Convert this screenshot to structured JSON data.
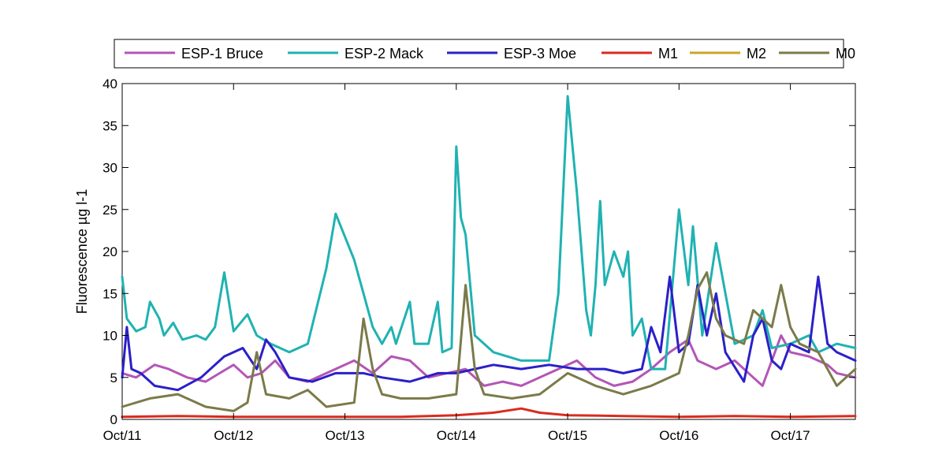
{
  "chart_data": {
    "type": "line",
    "title": "",
    "xlabel": "",
    "ylabel": "Fluorescence µg l-1",
    "xlim": [
      "2024-10-11",
      "2024-10-17 14:00"
    ],
    "ylim": [
      0,
      40
    ],
    "x_ticks": [
      "Oct/11",
      "Oct/12",
      "Oct/13",
      "Oct/14",
      "Oct/15",
      "Oct/16",
      "Oct/17"
    ],
    "y_ticks": [
      0,
      5,
      10,
      15,
      20,
      25,
      30,
      35,
      40
    ],
    "grid": false,
    "legend_position": "top",
    "series": [
      {
        "name": "ESP-1 Bruce",
        "color": "#b455b6",
        "points": [
          [
            "2024-10-11 00:00",
            5.5
          ],
          [
            "2024-10-11 03:00",
            5.0
          ],
          [
            "2024-10-11 07:00",
            6.5
          ],
          [
            "2024-10-11 10:00",
            6.0
          ],
          [
            "2024-10-11 14:00",
            5.0
          ],
          [
            "2024-10-11 18:00",
            4.5
          ],
          [
            "2024-10-11 21:00",
            5.5
          ],
          [
            "2024-10-12 00:00",
            6.5
          ],
          [
            "2024-10-12 03:00",
            5.0
          ],
          [
            "2024-10-12 06:00",
            5.5
          ],
          [
            "2024-10-12 09:00",
            7.0
          ],
          [
            "2024-10-12 12:00",
            5.0
          ],
          [
            "2024-10-12 16:00",
            4.5
          ],
          [
            "2024-10-12 20:00",
            5.5
          ],
          [
            "2024-10-13 00:00",
            6.5
          ],
          [
            "2024-10-13 02:00",
            7.0
          ],
          [
            "2024-10-13 06:00",
            5.5
          ],
          [
            "2024-10-13 10:00",
            7.5
          ],
          [
            "2024-10-13 14:00",
            7.0
          ],
          [
            "2024-10-13 18:00",
            5.0
          ],
          [
            "2024-10-13 22:00",
            5.5
          ],
          [
            "2024-10-14 02:00",
            6.0
          ],
          [
            "2024-10-14 06:00",
            4.0
          ],
          [
            "2024-10-14 10:00",
            4.5
          ],
          [
            "2024-10-14 14:00",
            4.0
          ],
          [
            "2024-10-14 18:00",
            5.0
          ],
          [
            "2024-10-14 22:00",
            6.0
          ],
          [
            "2024-10-15 02:00",
            7.0
          ],
          [
            "2024-10-15 06:00",
            5.0
          ],
          [
            "2024-10-15 10:00",
            4.0
          ],
          [
            "2024-10-15 14:00",
            4.5
          ],
          [
            "2024-10-15 18:00",
            6.0
          ],
          [
            "2024-10-15 22:00",
            8.0
          ],
          [
            "2024-10-16 02:00",
            9.5
          ],
          [
            "2024-10-16 04:00",
            7.0
          ],
          [
            "2024-10-16 08:00",
            6.0
          ],
          [
            "2024-10-16 12:00",
            7.0
          ],
          [
            "2024-10-16 16:00",
            5.0
          ],
          [
            "2024-10-16 18:00",
            4.0
          ],
          [
            "2024-10-16 20:00",
            7.0
          ],
          [
            "2024-10-16 22:00",
            10.0
          ],
          [
            "2024-10-17 00:00",
            8.0
          ],
          [
            "2024-10-17 04:00",
            7.5
          ],
          [
            "2024-10-17 08:00",
            6.5
          ],
          [
            "2024-10-17 10:00",
            5.5
          ],
          [
            "2024-10-17 14:00",
            5.0
          ]
        ]
      },
      {
        "name": "ESP-2 Mack",
        "color": "#20b2b2",
        "points": [
          [
            "2024-10-11 00:00",
            17.0
          ],
          [
            "2024-10-11 01:00",
            12.0
          ],
          [
            "2024-10-11 03:00",
            10.5
          ],
          [
            "2024-10-11 05:00",
            11.0
          ],
          [
            "2024-10-11 06:00",
            14.0
          ],
          [
            "2024-10-11 08:00",
            12.0
          ],
          [
            "2024-10-11 09:00",
            10.0
          ],
          [
            "2024-10-11 11:00",
            11.5
          ],
          [
            "2024-10-11 13:00",
            9.5
          ],
          [
            "2024-10-11 16:00",
            10.0
          ],
          [
            "2024-10-11 18:00",
            9.5
          ],
          [
            "2024-10-11 20:00",
            11.0
          ],
          [
            "2024-10-11 22:00",
            17.5
          ],
          [
            "2024-10-12 00:00",
            10.5
          ],
          [
            "2024-10-12 03:00",
            12.5
          ],
          [
            "2024-10-12 05:00",
            10.0
          ],
          [
            "2024-10-12 08:00",
            9.0
          ],
          [
            "2024-10-12 12:00",
            8.0
          ],
          [
            "2024-10-12 16:00",
            9.0
          ],
          [
            "2024-10-12 20:00",
            18.0
          ],
          [
            "2024-10-12 22:00",
            24.5
          ],
          [
            "2024-10-13 02:00",
            19.0
          ],
          [
            "2024-10-13 04:00",
            15.0
          ],
          [
            "2024-10-13 06:00",
            11.0
          ],
          [
            "2024-10-13 08:00",
            9.0
          ],
          [
            "2024-10-13 10:00",
            11.0
          ],
          [
            "2024-10-13 11:00",
            9.0
          ],
          [
            "2024-10-13 14:00",
            14.0
          ],
          [
            "2024-10-13 15:00",
            9.0
          ],
          [
            "2024-10-13 18:00",
            9.0
          ],
          [
            "2024-10-13 20:00",
            14.0
          ],
          [
            "2024-10-13 21:00",
            8.0
          ],
          [
            "2024-10-13 23:00",
            8.5
          ],
          [
            "2024-10-14 00:00",
            32.5
          ],
          [
            "2024-10-14 01:00",
            24.0
          ],
          [
            "2024-10-14 02:00",
            22.0
          ],
          [
            "2024-10-14 04:00",
            10.0
          ],
          [
            "2024-10-14 08:00",
            8.0
          ],
          [
            "2024-10-14 14:00",
            7.0
          ],
          [
            "2024-10-14 20:00",
            7.0
          ],
          [
            "2024-10-14 22:00",
            15.0
          ],
          [
            "2024-10-15 00:00",
            38.5
          ],
          [
            "2024-10-15 02:00",
            27.0
          ],
          [
            "2024-10-15 04:00",
            13.0
          ],
          [
            "2024-10-15 05:00",
            10.0
          ],
          [
            "2024-10-15 06:00",
            16.0
          ],
          [
            "2024-10-15 07:00",
            26.0
          ],
          [
            "2024-10-15 08:00",
            16.0
          ],
          [
            "2024-10-15 10:00",
            20.0
          ],
          [
            "2024-10-15 12:00",
            17.0
          ],
          [
            "2024-10-15 13:00",
            20.0
          ],
          [
            "2024-10-15 14:00",
            10.0
          ],
          [
            "2024-10-15 16:00",
            12.0
          ],
          [
            "2024-10-15 18:00",
            6.0
          ],
          [
            "2024-10-15 21:00",
            6.0
          ],
          [
            "2024-10-16 00:00",
            25.0
          ],
          [
            "2024-10-16 02:00",
            16.0
          ],
          [
            "2024-10-16 03:00",
            23.0
          ],
          [
            "2024-10-16 05:00",
            10.0
          ],
          [
            "2024-10-16 08:00",
            21.0
          ],
          [
            "2024-10-16 10:00",
            15.0
          ],
          [
            "2024-10-16 12:00",
            9.0
          ],
          [
            "2024-10-16 16:00",
            10.0
          ],
          [
            "2024-10-16 18:00",
            13.0
          ],
          [
            "2024-10-16 20:00",
            8.5
          ],
          [
            "2024-10-17 00:00",
            9.0
          ],
          [
            "2024-10-17 04:00",
            10.0
          ],
          [
            "2024-10-17 06:00",
            8.0
          ],
          [
            "2024-10-17 10:00",
            9.0
          ],
          [
            "2024-10-17 14:00",
            8.5
          ]
        ]
      },
      {
        "name": "ESP-3 Moe",
        "color": "#2b20c8",
        "points": [
          [
            "2024-10-11 00:00",
            5.0
          ],
          [
            "2024-10-11 01:00",
            11.0
          ],
          [
            "2024-10-11 02:00",
            6.0
          ],
          [
            "2024-10-11 04:00",
            5.5
          ],
          [
            "2024-10-11 07:00",
            4.0
          ],
          [
            "2024-10-11 12:00",
            3.5
          ],
          [
            "2024-10-11 17:00",
            5.0
          ],
          [
            "2024-10-11 22:00",
            7.5
          ],
          [
            "2024-10-12 02:00",
            8.5
          ],
          [
            "2024-10-12 05:00",
            6.0
          ],
          [
            "2024-10-12 07:00",
            9.5
          ],
          [
            "2024-10-12 09:00",
            8.0
          ],
          [
            "2024-10-12 12:00",
            5.0
          ],
          [
            "2024-10-12 17:00",
            4.5
          ],
          [
            "2024-10-12 22:00",
            5.5
          ],
          [
            "2024-10-13 04:00",
            5.5
          ],
          [
            "2024-10-13 08:00",
            5.0
          ],
          [
            "2024-10-13 14:00",
            4.5
          ],
          [
            "2024-10-13 20:00",
            5.5
          ],
          [
            "2024-10-14 00:00",
            5.5
          ],
          [
            "2024-10-14 04:00",
            6.0
          ],
          [
            "2024-10-14 08:00",
            6.5
          ],
          [
            "2024-10-14 14:00",
            6.0
          ],
          [
            "2024-10-14 20:00",
            6.5
          ],
          [
            "2024-10-15 02:00",
            6.0
          ],
          [
            "2024-10-15 08:00",
            6.0
          ],
          [
            "2024-10-15 12:00",
            5.5
          ],
          [
            "2024-10-15 16:00",
            6.0
          ],
          [
            "2024-10-15 18:00",
            11.0
          ],
          [
            "2024-10-15 20:00",
            8.0
          ],
          [
            "2024-10-15 22:00",
            17.0
          ],
          [
            "2024-10-16 00:00",
            8.0
          ],
          [
            "2024-10-16 02:00",
            9.0
          ],
          [
            "2024-10-16 04:00",
            16.0
          ],
          [
            "2024-10-16 06:00",
            10.0
          ],
          [
            "2024-10-16 08:00",
            15.0
          ],
          [
            "2024-10-16 10:00",
            8.0
          ],
          [
            "2024-10-16 14:00",
            4.5
          ],
          [
            "2024-10-16 16:00",
            10.0
          ],
          [
            "2024-10-16 18:00",
            12.0
          ],
          [
            "2024-10-16 20:00",
            7.0
          ],
          [
            "2024-10-16 22:00",
            6.0
          ],
          [
            "2024-10-17 00:00",
            9.0
          ],
          [
            "2024-10-17 04:00",
            8.0
          ],
          [
            "2024-10-17 06:00",
            17.0
          ],
          [
            "2024-10-17 08:00",
            9.0
          ],
          [
            "2024-10-17 10:00",
            8.0
          ],
          [
            "2024-10-17 14:00",
            7.0
          ]
        ]
      },
      {
        "name": "M1",
        "color": "#d92b1e",
        "points": [
          [
            "2024-10-11 00:00",
            0.3
          ],
          [
            "2024-10-11 12:00",
            0.4
          ],
          [
            "2024-10-12 00:00",
            0.3
          ],
          [
            "2024-10-12 12:00",
            0.3
          ],
          [
            "2024-10-13 00:00",
            0.3
          ],
          [
            "2024-10-13 12:00",
            0.3
          ],
          [
            "2024-10-14 00:00",
            0.5
          ],
          [
            "2024-10-14 08:00",
            0.8
          ],
          [
            "2024-10-14 14:00",
            1.3
          ],
          [
            "2024-10-14 18:00",
            0.8
          ],
          [
            "2024-10-15 00:00",
            0.5
          ],
          [
            "2024-10-15 12:00",
            0.4
          ],
          [
            "2024-10-16 00:00",
            0.3
          ],
          [
            "2024-10-16 12:00",
            0.4
          ],
          [
            "2024-10-17 00:00",
            0.3
          ],
          [
            "2024-10-17 14:00",
            0.4
          ]
        ]
      },
      {
        "name": "M2",
        "color": "#c9a629",
        "points": []
      },
      {
        "name": "M0",
        "color": "#7b7a4a",
        "points": [
          [
            "2024-10-11 00:00",
            1.5
          ],
          [
            "2024-10-11 06:00",
            2.5
          ],
          [
            "2024-10-11 12:00",
            3.0
          ],
          [
            "2024-10-11 18:00",
            1.5
          ],
          [
            "2024-10-12 00:00",
            1.0
          ],
          [
            "2024-10-12 03:00",
            2.0
          ],
          [
            "2024-10-12 05:00",
            8.0
          ],
          [
            "2024-10-12 07:00",
            3.0
          ],
          [
            "2024-10-12 12:00",
            2.5
          ],
          [
            "2024-10-12 16:00",
            3.5
          ],
          [
            "2024-10-12 20:00",
            1.5
          ],
          [
            "2024-10-13 02:00",
            2.0
          ],
          [
            "2024-10-13 04:00",
            12.0
          ],
          [
            "2024-10-13 06:00",
            6.0
          ],
          [
            "2024-10-13 08:00",
            3.0
          ],
          [
            "2024-10-13 12:00",
            2.5
          ],
          [
            "2024-10-13 18:00",
            2.5
          ],
          [
            "2024-10-14 00:00",
            3.0
          ],
          [
            "2024-10-14 02:00",
            16.0
          ],
          [
            "2024-10-14 04:00",
            6.0
          ],
          [
            "2024-10-14 06:00",
            3.0
          ],
          [
            "2024-10-14 12:00",
            2.5
          ],
          [
            "2024-10-14 18:00",
            3.0
          ],
          [
            "2024-10-15 00:00",
            5.5
          ],
          [
            "2024-10-15 06:00",
            4.0
          ],
          [
            "2024-10-15 12:00",
            3.0
          ],
          [
            "2024-10-15 18:00",
            4.0
          ],
          [
            "2024-10-16 00:00",
            5.5
          ],
          [
            "2024-10-16 02:00",
            10.0
          ],
          [
            "2024-10-16 04:00",
            15.5
          ],
          [
            "2024-10-16 06:00",
            17.5
          ],
          [
            "2024-10-16 08:00",
            12.0
          ],
          [
            "2024-10-16 10:00",
            10.0
          ],
          [
            "2024-10-16 14:00",
            9.0
          ],
          [
            "2024-10-16 16:00",
            13.0
          ],
          [
            "2024-10-16 20:00",
            11.0
          ],
          [
            "2024-10-16 22:00",
            16.0
          ],
          [
            "2024-10-17 00:00",
            11.0
          ],
          [
            "2024-10-17 02:00",
            9.0
          ],
          [
            "2024-10-17 06:00",
            8.0
          ],
          [
            "2024-10-17 10:00",
            4.0
          ],
          [
            "2024-10-17 12:00",
            5.0
          ],
          [
            "2024-10-17 14:00",
            6.0
          ]
        ]
      }
    ]
  }
}
